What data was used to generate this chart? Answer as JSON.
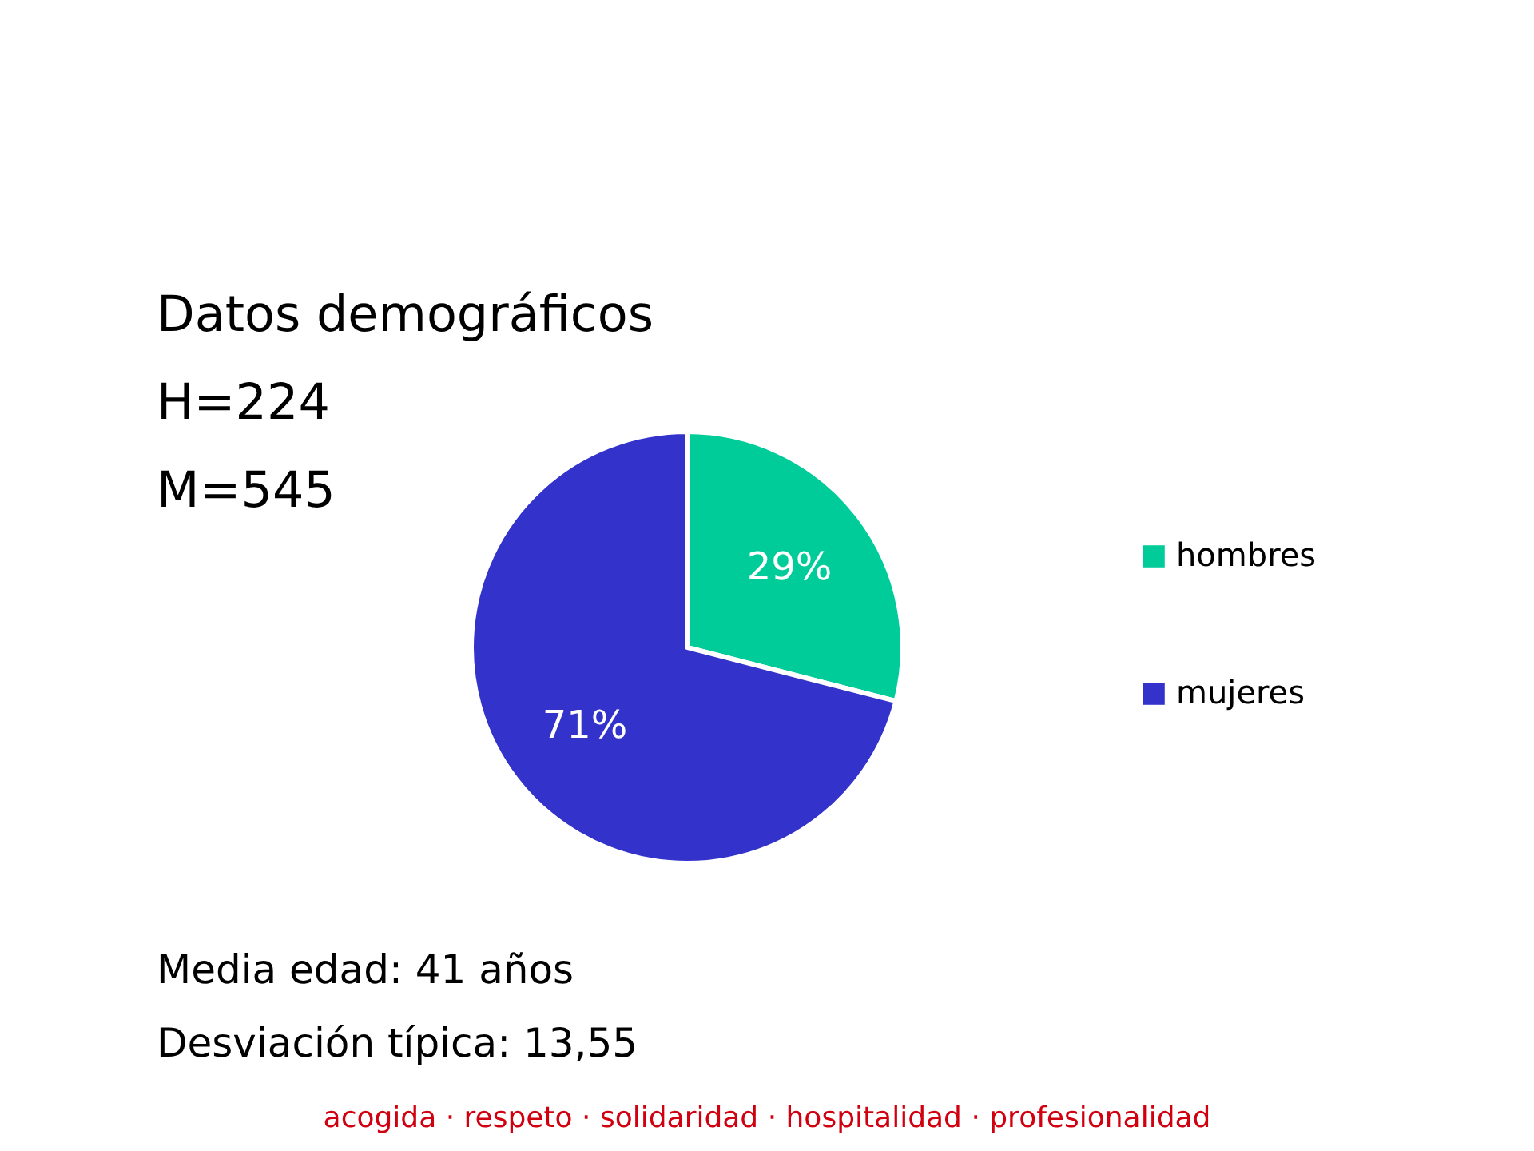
{
  "chart_data": {
    "type": "pie",
    "title": "Datos demográficos",
    "categories": [
      "hombres",
      "mujeres"
    ],
    "values": [
      29,
      71
    ],
    "colors": [
      "#00cc99",
      "#3333cc"
    ],
    "value_labels": [
      "29%",
      "71%"
    ],
    "legend": "right",
    "annotations": [
      "H=224",
      "M=545",
      "Media edad: 41 años",
      "Desviación típica: 13,55",
      "acogida · respeto · solidaridad · hospitalidad · profesionalidad"
    ]
  }
}
